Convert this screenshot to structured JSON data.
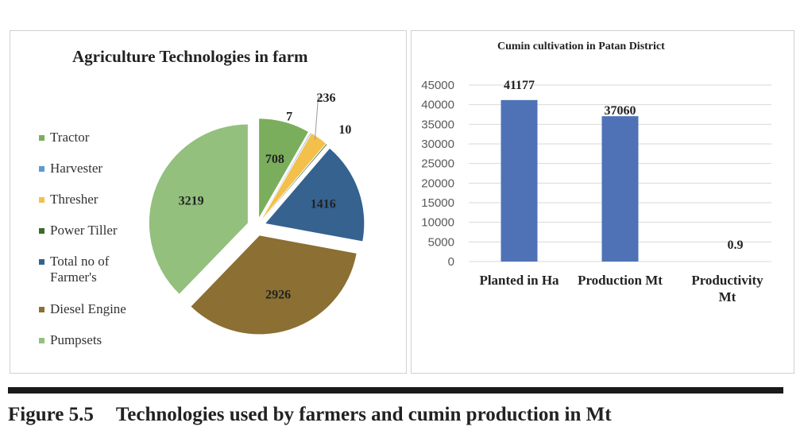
{
  "chart_data": [
    {
      "type": "pie",
      "title": "Agriculture Technologies in farm",
      "legend_position": "left",
      "categories": [
        "Tractor",
        "Harvester",
        "Thresher",
        "Power Tiller",
        "Total no of Farmer's",
        "Diesel Engine",
        "Pumpsets"
      ],
      "values": [
        708,
        7,
        236,
        10,
        1416,
        2926,
        3219
      ],
      "colors": [
        "#7aae5c",
        "#5b9bd5",
        "#f2c04b",
        "#3b6b2c",
        "#35628f",
        "#8b6f33",
        "#93c07d"
      ]
    },
    {
      "type": "bar",
      "title": "Cumin cultivation in Patan District",
      "categories": [
        "Planted in Ha",
        "Production Mt",
        "Productivity Mt"
      ],
      "values": [
        41177,
        37060,
        0.9
      ],
      "data_labels": [
        "41177",
        "37060",
        "0.9"
      ],
      "ylim": [
        0,
        45000
      ],
      "yticks": [
        "0",
        "5000",
        "10000",
        "15000",
        "20000",
        "25000",
        "30000",
        "35000",
        "40000",
        "45000"
      ],
      "grid": true,
      "color": "#4f72b6"
    }
  ],
  "caption": {
    "label": "Figure 5.5",
    "text": "Technologies used by farmers and cumin production in Mt"
  }
}
